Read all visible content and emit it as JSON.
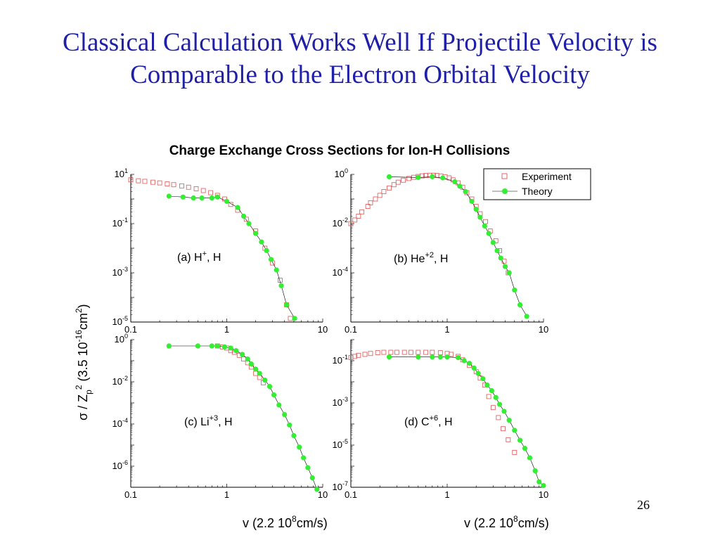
{
  "slide": {
    "title_line1": "Classical Calculation Works Well If Projectile Velocity is",
    "title_line2": "Comparable to the  Electron Orbital Velocity",
    "page_number": "26"
  },
  "colors": {
    "title": "#1f1fa8",
    "experiment": "#e06666",
    "theory_fill": "#33ee33",
    "theory_line": "#000000"
  },
  "chart_data": {
    "type": "scatter",
    "title": "Charge Exchange Cross Sections for Ion-H Collisions",
    "ylabel": {
      "sigma": "σ",
      "sep": " / Z",
      "sub_p": "p",
      "sup_2": "2",
      "paren_open": "  (3.5 10",
      "exp16": "-16",
      "cm": "cm",
      "exp2": "2",
      "paren_close": ")"
    },
    "xlabel": {
      "pre": "v (2.2 10",
      "exp": "8",
      "post": "cm/s)"
    },
    "legend": {
      "experiment": "Experiment",
      "theory": "Theory",
      "placement": "top-right of panel (b)"
    },
    "x_tick_labels": [
      "0.1",
      "1",
      "10"
    ],
    "panels": [
      {
        "id": "a",
        "label": {
          "pre": "(a) H",
          "sup": "+",
          "post": ", H"
        },
        "xlim": [
          0.1,
          10
        ],
        "ylog": [
          -5,
          1
        ],
        "yticks": [
          {
            "exp": 1,
            "label": "1"
          },
          {
            "exp": -1,
            "label": "-1"
          },
          {
            "exp": -3,
            "label": "-3"
          },
          {
            "exp": -5,
            "label": "-5"
          }
        ],
        "experiment": [
          [
            0.1,
            6
          ],
          [
            0.12,
            5.5
          ],
          [
            0.14,
            5.2
          ],
          [
            0.17,
            4.8
          ],
          [
            0.2,
            4.5
          ],
          [
            0.24,
            4.1
          ],
          [
            0.28,
            3.8
          ],
          [
            0.34,
            3.4
          ],
          [
            0.4,
            3.0
          ],
          [
            0.48,
            2.6
          ],
          [
            0.57,
            2.2
          ],
          [
            0.68,
            1.8
          ],
          [
            0.8,
            1.4
          ],
          [
            0.95,
            1.0
          ],
          [
            1.1,
            0.6
          ],
          [
            1.3,
            0.35
          ],
          [
            1.6,
            0.15
          ],
          [
            2.0,
            0.05
          ],
          [
            2.5,
            0.01
          ],
          [
            3.0,
            0.0025
          ],
          [
            3.6,
            0.0005
          ],
          [
            4.2,
            5e-05
          ],
          [
            4.6,
            1.4e-05
          ]
        ],
        "theory": [
          [
            0.25,
            1.3
          ],
          [
            0.35,
            1.2
          ],
          [
            0.45,
            1.1
          ],
          [
            0.55,
            1.1
          ],
          [
            0.7,
            1.1
          ],
          [
            0.8,
            1.2
          ],
          [
            1.0,
            0.8
          ],
          [
            1.3,
            0.45
          ],
          [
            1.5,
            0.2
          ],
          [
            1.7,
            0.1
          ],
          [
            2.0,
            0.04
          ],
          [
            2.3,
            0.018
          ],
          [
            2.6,
            0.008
          ],
          [
            2.9,
            0.0035
          ],
          [
            3.3,
            0.0013
          ],
          [
            3.7,
            0.0003
          ],
          [
            4.2,
            5e-05
          ],
          [
            5.1,
            1.4e-05
          ]
        ]
      },
      {
        "id": "b",
        "label": {
          "pre": "(b) He",
          "sup": "+2",
          "post": ", H"
        },
        "xlim": [
          0.1,
          10
        ],
        "ylog": [
          -6,
          0
        ],
        "yticks": [
          {
            "exp": 0,
            "label": "0"
          },
          {
            "exp": -2,
            "label": "-2"
          },
          {
            "exp": -4,
            "label": "-4"
          }
        ],
        "experiment": [
          [
            0.1,
            0.01
          ],
          [
            0.11,
            0.014
          ],
          [
            0.12,
            0.02
          ],
          [
            0.13,
            0.03
          ],
          [
            0.15,
            0.05
          ],
          [
            0.16,
            0.07
          ],
          [
            0.18,
            0.1
          ],
          [
            0.2,
            0.14
          ],
          [
            0.22,
            0.2
          ],
          [
            0.25,
            0.28
          ],
          [
            0.28,
            0.38
          ],
          [
            0.31,
            0.48
          ],
          [
            0.35,
            0.58
          ],
          [
            0.4,
            0.68
          ],
          [
            0.45,
            0.76
          ],
          [
            0.5,
            0.82
          ],
          [
            0.55,
            0.87
          ],
          [
            0.6,
            0.9
          ],
          [
            0.66,
            0.92
          ],
          [
            0.72,
            0.92
          ],
          [
            0.78,
            0.9
          ],
          [
            0.86,
            0.86
          ],
          [
            0.95,
            0.8
          ],
          [
            1.05,
            0.72
          ],
          [
            1.15,
            0.6
          ],
          [
            1.3,
            0.45
          ],
          [
            1.45,
            0.3
          ],
          [
            1.6,
            0.18
          ],
          [
            1.8,
            0.1
          ],
          [
            2.0,
            0.05
          ],
          [
            2.2,
            0.025
          ],
          [
            2.5,
            0.012
          ],
          [
            2.8,
            0.005
          ],
          [
            3.2,
            0.002
          ],
          [
            3.5,
            0.0008
          ],
          [
            3.9,
            0.0003
          ],
          [
            4.3,
            0.0001
          ]
        ],
        "theory": [
          [
            0.25,
            0.8
          ],
          [
            0.5,
            0.75
          ],
          [
            0.7,
            0.8
          ],
          [
            0.9,
            0.72
          ],
          [
            1.2,
            0.5
          ],
          [
            1.35,
            0.33
          ],
          [
            1.55,
            0.2
          ],
          [
            1.8,
            0.08
          ],
          [
            2.0,
            0.038
          ],
          [
            2.2,
            0.018
          ],
          [
            2.45,
            0.008
          ],
          [
            2.7,
            0.004
          ],
          [
            3.0,
            0.0017
          ],
          [
            3.3,
            0.0008
          ],
          [
            3.6,
            0.0004
          ],
          [
            4.0,
            0.00018
          ],
          [
            4.4,
            0.0001
          ],
          [
            5.0,
            2e-05
          ],
          [
            5.7,
            5e-06
          ],
          [
            6.7,
            1.7e-06
          ]
        ]
      },
      {
        "id": "c",
        "label": {
          "pre": "(c) Li",
          "sup": "+3",
          "post": ", H"
        },
        "xlim": [
          0.1,
          10
        ],
        "ylog": [
          -7,
          0
        ],
        "yticks": [
          {
            "exp": 0,
            "label": "0"
          },
          {
            "exp": -2,
            "label": "-2"
          },
          {
            "exp": -4,
            "label": "-4"
          },
          {
            "exp": -6,
            "label": "-6"
          }
        ],
        "experiment": [
          [
            0.8,
            0.5
          ],
          [
            0.9,
            0.45
          ],
          [
            1.0,
            0.4
          ],
          [
            1.1,
            0.3
          ],
          [
            1.2,
            0.25
          ],
          [
            1.35,
            0.18
          ],
          [
            1.5,
            0.12
          ],
          [
            1.65,
            0.08
          ],
          [
            1.8,
            0.05
          ],
          [
            2.0,
            0.025
          ],
          [
            2.2,
            0.016
          ],
          [
            2.4,
            0.009
          ]
        ],
        "theory": [
          [
            0.25,
            0.5
          ],
          [
            0.5,
            0.5
          ],
          [
            0.7,
            0.5
          ],
          [
            0.8,
            0.5
          ],
          [
            0.95,
            0.45
          ],
          [
            1.1,
            0.4
          ],
          [
            1.25,
            0.3
          ],
          [
            1.45,
            0.2
          ],
          [
            1.65,
            0.12
          ],
          [
            1.8,
            0.07
          ],
          [
            2.0,
            0.04
          ],
          [
            2.2,
            0.025
          ],
          [
            2.5,
            0.012
          ],
          [
            2.8,
            0.006
          ],
          [
            3.1,
            0.0024
          ],
          [
            3.5,
            0.0008
          ],
          [
            4.0,
            0.00028
          ],
          [
            4.5,
            9e-05
          ],
          [
            5.0,
            2.8e-05
          ],
          [
            5.7,
            8e-06
          ],
          [
            6.3,
            2.5e-06
          ],
          [
            7.0,
            8.5e-07
          ],
          [
            7.8,
            2.8e-07
          ],
          [
            8.7,
            8e-08
          ]
        ]
      },
      {
        "id": "d",
        "label": {
          "pre": "(d) C",
          "sup": "+6",
          "post": ", H"
        },
        "xlim": [
          0.1,
          10
        ],
        "ylog": [
          -7,
          0
        ],
        "yticks": [
          {
            "exp": -1,
            "label": "-1"
          },
          {
            "exp": -3,
            "label": "-3"
          },
          {
            "exp": -5,
            "label": "-5"
          },
          {
            "exp": -7,
            "label": "-7"
          }
        ],
        "experiment": [
          [
            0.1,
            0.14
          ],
          [
            0.11,
            0.16
          ],
          [
            0.12,
            0.18
          ],
          [
            0.14,
            0.2
          ],
          [
            0.16,
            0.22
          ],
          [
            0.19,
            0.24
          ],
          [
            0.22,
            0.25
          ],
          [
            0.26,
            0.25
          ],
          [
            0.3,
            0.25
          ],
          [
            0.36,
            0.25
          ],
          [
            0.42,
            0.25
          ],
          [
            0.5,
            0.25
          ],
          [
            0.6,
            0.25
          ],
          [
            0.7,
            0.25
          ],
          [
            0.85,
            0.24
          ],
          [
            1.0,
            0.22
          ],
          [
            1.1,
            0.2
          ],
          [
            1.3,
            0.16
          ],
          [
            1.45,
            0.11
          ],
          [
            1.7,
            0.06
          ],
          [
            2.0,
            0.03
          ],
          [
            2.2,
            0.015
          ],
          [
            2.45,
            0.007
          ],
          [
            2.7,
            0.002
          ],
          [
            3.0,
            0.0006
          ],
          [
            3.4,
            0.0002
          ],
          [
            3.8,
            6e-05
          ],
          [
            4.3,
            1.8e-05
          ],
          [
            5.0,
            4.5e-06
          ]
        ],
        "theory": [
          [
            0.25,
            0.15
          ],
          [
            0.5,
            0.15
          ],
          [
            0.7,
            0.15
          ],
          [
            0.85,
            0.15
          ],
          [
            1.0,
            0.15
          ],
          [
            1.3,
            0.14
          ],
          [
            1.5,
            0.1
          ],
          [
            1.7,
            0.075
          ],
          [
            1.9,
            0.045
          ],
          [
            2.1,
            0.025
          ],
          [
            2.35,
            0.014
          ],
          [
            2.6,
            0.007
          ],
          [
            2.9,
            0.0038
          ],
          [
            3.2,
            0.0018
          ],
          [
            3.5,
            0.00085
          ],
          [
            3.9,
            0.0004
          ],
          [
            4.4,
            0.00015
          ],
          [
            5.0,
            5e-05
          ],
          [
            5.7,
            1.7e-05
          ],
          [
            6.4,
            7e-06
          ],
          [
            7.2,
            2.5e-06
          ],
          [
            8.2,
            6e-07
          ],
          [
            9.0,
            1.8e-07
          ],
          [
            10.0,
            1.2e-07
          ]
        ]
      }
    ]
  }
}
